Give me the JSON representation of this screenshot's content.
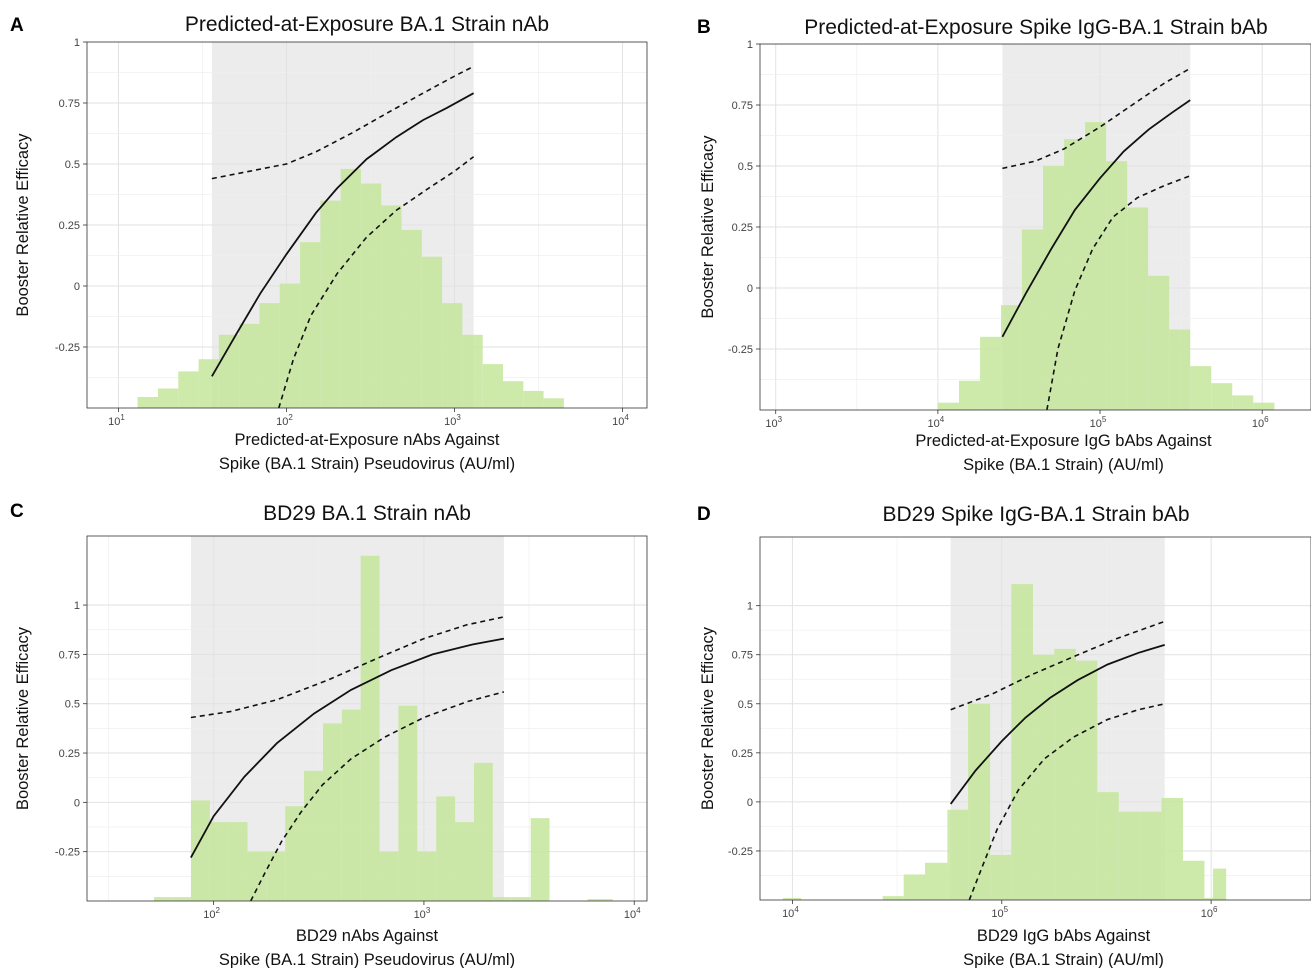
{
  "chart_data": [
    {
      "letter": "A",
      "type": "bar",
      "title": "Predicted-at-Exposure BA.1 Strain nAb",
      "xlabel": [
        "Predicted-at-Exposure nAbs Against",
        "Spike (BA.1 Strain) Pseudovirus (AU/ml)"
      ],
      "ylabel": "Booster Relative Efficacy",
      "x_scale": "log10",
      "xlim": [
        6.5,
        14000
      ],
      "ylim": [
        -0.5,
        1
      ],
      "x_ticks": [
        {
          "value": 10,
          "base": "10",
          "exp": "1"
        },
        {
          "value": 100,
          "base": "10",
          "exp": "2"
        },
        {
          "value": 1000,
          "base": "10",
          "exp": "3"
        },
        {
          "value": 10000,
          "base": "10",
          "exp": "4"
        }
      ],
      "y_ticks": [
        {
          "value": -0.25,
          "label": "-0.25"
        },
        {
          "value": 0,
          "label": "0"
        },
        {
          "value": 0.25,
          "label": "0.25"
        },
        {
          "value": 0.5,
          "label": "0.5"
        },
        {
          "value": 0.75,
          "label": "0.75"
        },
        {
          "value": 1,
          "label": "1"
        }
      ],
      "shade_range": [
        36,
        1300
      ],
      "histogram": {
        "edges": [
          13,
          17.2,
          22.7,
          30,
          39.6,
          52.3,
          69.1,
          91.2,
          120.5,
          159.2,
          210.2,
          277.6,
          366.6,
          484.2,
          639.4,
          844.5,
          1115,
          1473,
          1945,
          2570,
          3393,
          4482
        ],
        "values": [
          -0.455,
          -0.42,
          -0.35,
          -0.3,
          -0.2,
          -0.155,
          -0.07,
          0.01,
          0.18,
          0.35,
          0.48,
          0.42,
          0.33,
          0.23,
          0.12,
          -0.07,
          -0.2,
          -0.32,
          -0.39,
          -0.43,
          -0.46
        ]
      },
      "curve": {
        "x": [
          36,
          50,
          70,
          100,
          150,
          200,
          300,
          450,
          650,
          900,
          1300
        ],
        "y": [
          -0.37,
          -0.2,
          -0.03,
          0.13,
          0.3,
          0.4,
          0.52,
          0.61,
          0.68,
          0.73,
          0.79
        ]
      },
      "upper_ci": {
        "x": [
          36,
          60,
          100,
          150,
          250,
          400,
          650,
          1000,
          1300
        ],
        "y": [
          0.44,
          0.47,
          0.5,
          0.55,
          0.63,
          0.71,
          0.79,
          0.86,
          0.9
        ]
      },
      "lower_ci": {
        "x": [
          90,
          110,
          140,
          200,
          300,
          450,
          700,
          1000,
          1300
        ],
        "y": [
          -0.5,
          -0.3,
          -0.12,
          0.05,
          0.2,
          0.31,
          0.4,
          0.47,
          0.53
        ]
      },
      "colors": {
        "bar": "#c6e69c",
        "shade": "#ececec",
        "curve": "#111111"
      }
    },
    {
      "letter": "B",
      "type": "bar",
      "title": "Predicted-at-Exposure Spike IgG-BA.1 Strain bAb",
      "xlabel": [
        "Predicted-at-Exposure IgG bAbs Against",
        "Spike (BA.1 Strain) (AU/ml)"
      ],
      "ylabel": "Booster Relative Efficacy",
      "x_scale": "log10",
      "xlim": [
        800,
        2000000
      ],
      "ylim": [
        -0.5,
        1
      ],
      "x_ticks": [
        {
          "value": 1000,
          "base": "10",
          "exp": "3"
        },
        {
          "value": 10000,
          "base": "10",
          "exp": "4"
        },
        {
          "value": 100000,
          "base": "10",
          "exp": "5"
        },
        {
          "value": 1000000,
          "base": "10",
          "exp": "6"
        }
      ],
      "y_ticks": [
        {
          "value": -0.25,
          "label": "-0.25"
        },
        {
          "value": 0,
          "label": "0"
        },
        {
          "value": 0.25,
          "label": "0.25"
        },
        {
          "value": 0.5,
          "label": "0.5"
        },
        {
          "value": 0.75,
          "label": "0.75"
        },
        {
          "value": 1,
          "label": "1"
        }
      ],
      "shade_range": [
        25000,
        360000
      ],
      "histogram": {
        "edges": [
          10000,
          13500,
          18200,
          24500,
          33000,
          44500,
          60000,
          80800,
          109000,
          147000,
          198000,
          267000,
          360000,
          485000,
          654000,
          881000,
          1190000
        ],
        "values": [
          -0.47,
          -0.38,
          -0.2,
          -0.07,
          0.24,
          0.5,
          0.61,
          0.68,
          0.52,
          0.33,
          0.05,
          -0.17,
          -0.32,
          -0.39,
          -0.44,
          -0.47
        ]
      },
      "curve": {
        "x": [
          25000,
          35000,
          50000,
          70000,
          100000,
          140000,
          200000,
          280000,
          360000
        ],
        "y": [
          -0.2,
          -0.02,
          0.16,
          0.32,
          0.45,
          0.56,
          0.65,
          0.72,
          0.77
        ]
      },
      "upper_ci": {
        "x": [
          25000,
          40000,
          60000,
          100000,
          150000,
          250000,
          360000
        ],
        "y": [
          0.49,
          0.52,
          0.57,
          0.66,
          0.74,
          0.84,
          0.9
        ]
      },
      "lower_ci": {
        "x": [
          47000,
          55000,
          70000,
          90000,
          120000,
          170000,
          250000,
          360000
        ],
        "y": [
          -0.5,
          -0.25,
          -0.01,
          0.16,
          0.29,
          0.37,
          0.42,
          0.46
        ]
      },
      "colors": {
        "bar": "#c6e69c",
        "shade": "#ececec",
        "curve": "#111111"
      }
    },
    {
      "letter": "C",
      "type": "bar",
      "title": "BD29 BA.1 Strain nAb",
      "xlabel": [
        "BD29 nAbs Against",
        "Spike (BA.1 Strain) Pseudovirus (AU/ml)"
      ],
      "ylabel": "Booster Relative Efficacy",
      "x_scale": "log10",
      "xlim": [
        25,
        11500
      ],
      "ylim": [
        -0.5,
        1.35
      ],
      "x_ticks": [
        {
          "value": 100,
          "base": "10",
          "exp": "2"
        },
        {
          "value": 1000,
          "base": "10",
          "exp": "3"
        },
        {
          "value": 10000,
          "base": "10",
          "exp": "4"
        }
      ],
      "y_ticks": [
        {
          "value": -0.25,
          "label": "-0.25"
        },
        {
          "value": 0,
          "label": "0"
        },
        {
          "value": 0.25,
          "label": "0.25"
        },
        {
          "value": 0.5,
          "label": "0.5"
        },
        {
          "value": 0.75,
          "label": "0.75"
        },
        {
          "value": 1,
          "label": "1"
        }
      ],
      "shade_range": [
        78,
        2400
      ],
      "histogram": {
        "edges": [
          52,
          64,
          78,
          96,
          118,
          145,
          178,
          219,
          269,
          331,
          407,
          500,
          615,
          756,
          930,
          1144,
          1406,
          1730,
          2127,
          2616,
          3218,
          3957
        ],
        "values": [
          -0.48,
          -0.48,
          0.01,
          -0.1,
          -0.1,
          -0.25,
          -0.25,
          -0.02,
          0.16,
          0.4,
          0.47,
          1.25,
          -0.25,
          0.49,
          -0.25,
          0.03,
          -0.1,
          0.2,
          -0.48,
          -0.48,
          -0.08
        ]
      },
      "extra_bars": [
        {
          "x0": 6000,
          "x1": 7900,
          "y": -0.49
        }
      ],
      "curve": {
        "x": [
          78,
          100,
          140,
          200,
          300,
          450,
          700,
          1100,
          1700,
          2400
        ],
        "y": [
          -0.28,
          -0.07,
          0.13,
          0.3,
          0.45,
          0.57,
          0.67,
          0.75,
          0.8,
          0.83
        ]
      },
      "upper_ci": {
        "x": [
          78,
          120,
          200,
          350,
          600,
          1000,
          1600,
          2400
        ],
        "y": [
          0.43,
          0.46,
          0.52,
          0.62,
          0.73,
          0.83,
          0.9,
          0.94
        ]
      },
      "lower_ci": {
        "x": [
          150,
          175,
          210,
          260,
          330,
          450,
          650,
          1000,
          1600,
          2400
        ],
        "y": [
          -0.5,
          -0.36,
          -0.2,
          -0.05,
          0.09,
          0.22,
          0.33,
          0.43,
          0.51,
          0.56
        ]
      },
      "colors": {
        "bar": "#c6e69c",
        "shade": "#ececec",
        "curve": "#111111"
      }
    },
    {
      "letter": "D",
      "type": "bar",
      "title": "BD29 Spike IgG-BA.1 Strain bAb",
      "xlabel": [
        "BD29 IgG bAbs Against",
        "Spike (BA.1 Strain) (AU/ml)"
      ],
      "ylabel": "Booster Relative Efficacy",
      "x_scale": "log10",
      "xlim": [
        7000,
        3000000
      ],
      "ylim": [
        -0.5,
        1.35
      ],
      "x_ticks": [
        {
          "value": 10000,
          "base": "10",
          "exp": "4"
        },
        {
          "value": 100000,
          "base": "10",
          "exp": "5"
        },
        {
          "value": 1000000,
          "base": "10",
          "exp": "6"
        }
      ],
      "y_ticks": [
        {
          "value": -0.25,
          "label": "-0.25"
        },
        {
          "value": 0,
          "label": "0"
        },
        {
          "value": 0.25,
          "label": "0.25"
        },
        {
          "value": 0.5,
          "label": "0.5"
        },
        {
          "value": 0.75,
          "label": "0.75"
        },
        {
          "value": 1,
          "label": "1"
        }
      ],
      "shade_range": [
        57000,
        600000
      ],
      "histogram": {
        "edges": [
          27000,
          34000,
          43000,
          55000,
          69000,
          88000,
          111000,
          141000,
          178000,
          226000,
          286000,
          362000,
          458000,
          580000,
          734000,
          929000,
          1180000
        ],
        "values": [
          -0.48,
          -0.37,
          -0.31,
          -0.04,
          0.5,
          -0.27,
          1.11,
          0.75,
          0.78,
          0.72,
          0.05,
          -0.05,
          -0.05,
          0.02,
          -0.3,
          -0.49
        ]
      },
      "extra_bars": [
        {
          "x0": 9000,
          "x1": 11000,
          "y": -0.49
        },
        {
          "x0": 1020000,
          "x1": 1180000,
          "y": -0.34
        }
      ],
      "curve": {
        "x": [
          57000,
          75000,
          100000,
          130000,
          170000,
          230000,
          320000,
          450000,
          600000
        ],
        "y": [
          -0.01,
          0.16,
          0.31,
          0.43,
          0.53,
          0.62,
          0.7,
          0.76,
          0.8
        ]
      },
      "upper_ci": {
        "x": [
          57000,
          90000,
          140000,
          220000,
          350000,
          600000
        ],
        "y": [
          0.47,
          0.55,
          0.65,
          0.74,
          0.83,
          0.92
        ]
      },
      "lower_ci": {
        "x": [
          70000,
          80000,
          95000,
          120000,
          160000,
          220000,
          320000,
          450000,
          600000
        ],
        "y": [
          -0.5,
          -0.34,
          -0.14,
          0.06,
          0.22,
          0.33,
          0.42,
          0.47,
          0.5
        ]
      },
      "colors": {
        "bar": "#c6e69c",
        "shade": "#ececec",
        "curve": "#111111"
      }
    }
  ]
}
